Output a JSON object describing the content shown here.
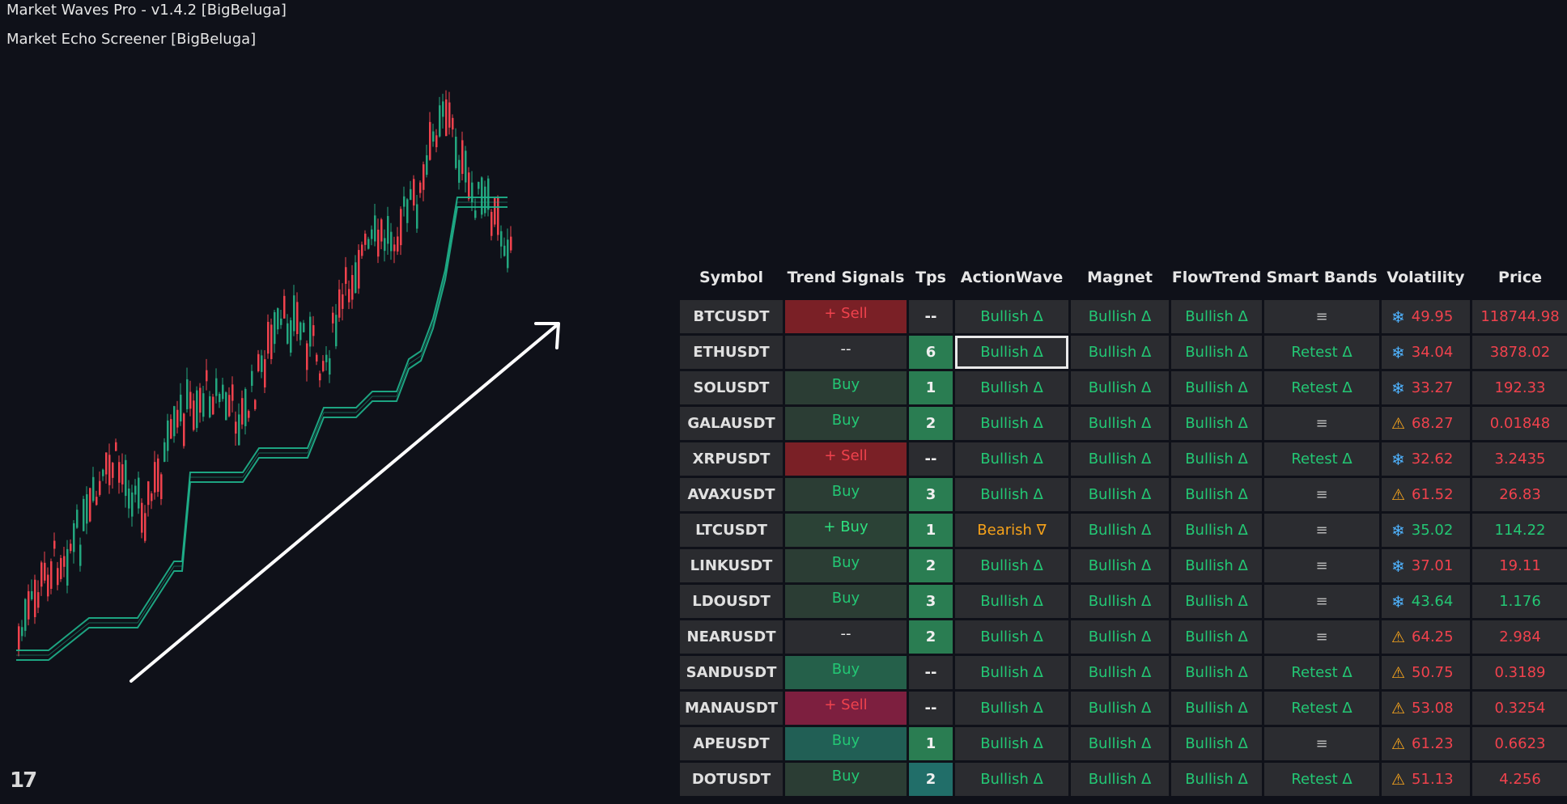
{
  "indicators": [
    "Market Waves Pro - v1.4.2 [BigBeluga]",
    "Market Echo Screener [BigBeluga]"
  ],
  "logo_text": "17",
  "colors": {
    "background": "#0f1119",
    "candle_up": "#23a77f",
    "candle_down": "#f0424d",
    "wave_band": "#1fb58d",
    "arrow": "#ffffff",
    "text_green": "#23c774",
    "text_red": "#f0424d",
    "text_orange": "#f6a21a"
  },
  "chart": {
    "trend_arrow": "up-right",
    "candles_description": "uptrend"
  },
  "table": {
    "headers": [
      "Symbol",
      "Trend Signals",
      "Tps",
      "ActionWave",
      "Magnet",
      "FlowTrend",
      "Smart Bands",
      "Volatility",
      "Price"
    ],
    "rows": [
      {
        "symbol": "BTCUSDT",
        "trend": "+ Sell",
        "trend_bg": "#7a2026",
        "trend_color": "red",
        "tps": "--",
        "tps_bg": "#2b2c30",
        "action": "Bullish Δ",
        "action_color": "green",
        "magnet": "Bullish Δ",
        "flow": "Bullish Δ",
        "bands": "≡",
        "bands_color": "muted",
        "vol_icon": "snowflake",
        "vol": "49.95",
        "vol_color": "red",
        "price": "118744.98",
        "price_color": "red"
      },
      {
        "symbol": "ETHUSDT",
        "trend": "--",
        "trend_bg": "#2b2c30",
        "trend_color": "white",
        "tps": "6",
        "tps_bg": "#2a7d52",
        "action": "Bullish Δ",
        "action_color": "green",
        "selected": true,
        "magnet": "Bullish Δ",
        "flow": "Bullish Δ",
        "bands": "Retest Δ",
        "bands_color": "green",
        "vol_icon": "snowflake",
        "vol": "34.04",
        "vol_color": "red",
        "price": "3878.02",
        "price_color": "red"
      },
      {
        "symbol": "SOLUSDT",
        "trend": "Buy",
        "trend_bg": "#2b3d34",
        "trend_color": "green",
        "tps": "1",
        "tps_bg": "#2a7d52",
        "action": "Bullish Δ",
        "action_color": "green",
        "magnet": "Bullish Δ",
        "flow": "Bullish Δ",
        "bands": "Retest Δ",
        "bands_color": "green",
        "vol_icon": "snowflake",
        "vol": "33.27",
        "vol_color": "red",
        "price": "192.33",
        "price_color": "red"
      },
      {
        "symbol": "GALAUSDT",
        "trend": "Buy",
        "trend_bg": "#2b3d34",
        "trend_color": "green",
        "tps": "2",
        "tps_bg": "#2a7d52",
        "action": "Bullish Δ",
        "action_color": "green",
        "magnet": "Bullish Δ",
        "flow": "Bullish Δ",
        "bands": "≡",
        "bands_color": "muted",
        "vol_icon": "warning",
        "vol": "68.27",
        "vol_color": "red",
        "price": "0.01848",
        "price_color": "red"
      },
      {
        "symbol": "XRPUSDT",
        "trend": "+ Sell",
        "trend_bg": "#7a2026",
        "trend_color": "red",
        "tps": "--",
        "tps_bg": "#2b2c30",
        "action": "Bullish Δ",
        "action_color": "green",
        "magnet": "Bullish Δ",
        "flow": "Bullish Δ",
        "bands": "Retest Δ",
        "bands_color": "green",
        "vol_icon": "snowflake",
        "vol": "32.62",
        "vol_color": "red",
        "price": "3.2435",
        "price_color": "red"
      },
      {
        "symbol": "AVAXUSDT",
        "trend": "Buy",
        "trend_bg": "#2b3d34",
        "trend_color": "green",
        "tps": "3",
        "tps_bg": "#2a7d52",
        "action": "Bullish Δ",
        "action_color": "green",
        "magnet": "Bullish Δ",
        "flow": "Bullish Δ",
        "bands": "≡",
        "bands_color": "muted",
        "vol_icon": "warning",
        "vol": "61.52",
        "vol_color": "red",
        "price": "26.83",
        "price_color": "red"
      },
      {
        "symbol": "LTCUSDT",
        "trend": "+ Buy",
        "trend_bg": "#2b4236",
        "trend_color": "brightgreen",
        "tps": "1",
        "tps_bg": "#2a7d52",
        "action": "Bearish ∇",
        "action_color": "orange",
        "magnet": "Bullish Δ",
        "flow": "Bullish Δ",
        "bands": "≡",
        "bands_color": "muted",
        "vol_icon": "snowflake",
        "vol": "35.02",
        "vol_color": "green",
        "price": "114.22",
        "price_color": "green"
      },
      {
        "symbol": "LINKUSDT",
        "trend": "Buy",
        "trend_bg": "#2b3d34",
        "trend_color": "green",
        "tps": "2",
        "tps_bg": "#2a7d52",
        "action": "Bullish Δ",
        "action_color": "green",
        "magnet": "Bullish Δ",
        "flow": "Bullish Δ",
        "bands": "≡",
        "bands_color": "muted",
        "vol_icon": "snowflake",
        "vol": "37.01",
        "vol_color": "red",
        "price": "19.11",
        "price_color": "red"
      },
      {
        "symbol": "LDOUSDT",
        "trend": "Buy",
        "trend_bg": "#2b3d34",
        "trend_color": "green",
        "tps": "3",
        "tps_bg": "#2a7d52",
        "action": "Bullish Δ",
        "action_color": "green",
        "magnet": "Bullish Δ",
        "flow": "Bullish Δ",
        "bands": "≡",
        "bands_color": "muted",
        "vol_icon": "snowflake",
        "vol": "43.64",
        "vol_color": "green",
        "price": "1.176",
        "price_color": "green"
      },
      {
        "symbol": "NEARUSDT",
        "trend": "--",
        "trend_bg": "#2b2c30",
        "trend_color": "white",
        "tps": "2",
        "tps_bg": "#2a7d52",
        "action": "Bullish Δ",
        "action_color": "green",
        "magnet": "Bullish Δ",
        "flow": "Bullish Δ",
        "bands": "≡",
        "bands_color": "muted",
        "vol_icon": "warning",
        "vol": "64.25",
        "vol_color": "red",
        "price": "2.984",
        "price_color": "red"
      },
      {
        "symbol": "SANDUSDT",
        "trend": "Buy",
        "trend_bg": "#25604a",
        "trend_color": "green",
        "tps": "--",
        "tps_bg": "#2b2c30",
        "action": "Bullish Δ",
        "action_color": "green",
        "magnet": "Bullish Δ",
        "flow": "Bullish Δ",
        "bands": "Retest Δ",
        "bands_color": "green",
        "vol_icon": "warning",
        "vol": "50.75",
        "vol_color": "red",
        "price": "0.3189",
        "price_color": "red"
      },
      {
        "symbol": "MANAUSDT",
        "trend": "+ Sell",
        "trend_bg": "#7d1f3f",
        "trend_color": "red",
        "tps": "--",
        "tps_bg": "#2b2c30",
        "action": "Bullish Δ",
        "action_color": "green",
        "magnet": "Bullish Δ",
        "flow": "Bullish Δ",
        "bands": "Retest Δ",
        "bands_color": "green",
        "vol_icon": "warning",
        "vol": "53.08",
        "vol_color": "red",
        "price": "0.3254",
        "price_color": "red"
      },
      {
        "symbol": "APEUSDT",
        "trend": "Buy",
        "trend_bg": "#215f55",
        "trend_color": "green",
        "tps": "1",
        "tps_bg": "#2a7d52",
        "action": "Bullish Δ",
        "action_color": "green",
        "magnet": "Bullish Δ",
        "flow": "Bullish Δ",
        "bands": "≡",
        "bands_color": "muted",
        "vol_icon": "warning",
        "vol": "61.23",
        "vol_color": "red",
        "price": "0.6623",
        "price_color": "red"
      },
      {
        "symbol": "DOTUSDT",
        "trend": "Buy",
        "trend_bg": "#2b3d34",
        "trend_color": "green",
        "tps": "2",
        "tps_bg": "#216e69",
        "action": "Bullish Δ",
        "action_color": "green",
        "magnet": "Bullish Δ",
        "flow": "Bullish Δ",
        "bands": "Retest Δ",
        "bands_color": "green",
        "vol_icon": "warning",
        "vol": "51.13",
        "vol_color": "red",
        "price": "4.256",
        "price_color": "red"
      }
    ]
  }
}
